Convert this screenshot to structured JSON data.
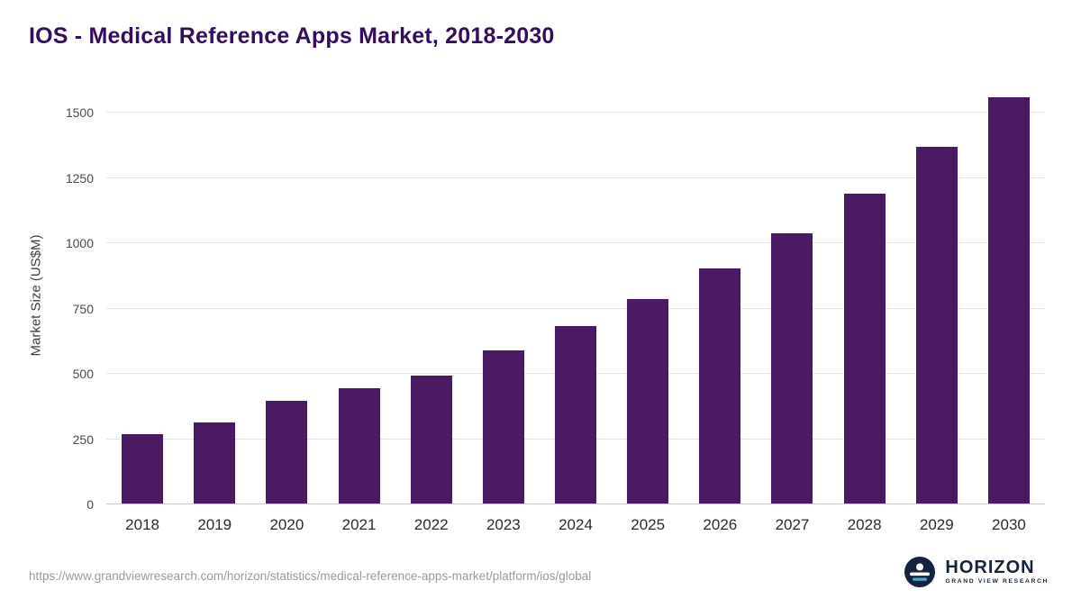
{
  "header": {
    "title": "IOS - Medical Reference Apps Market, 2018-2030"
  },
  "footer": {
    "source_url": "https://www.grandviewresearch.com/horizon/statistics/medical-reference-apps-market/platform/ios/global",
    "brand": {
      "name": "HORIZON",
      "subtitle": "GRAND VIEW RESEARCH"
    }
  },
  "colors": {
    "bar": "#4a1a63",
    "title": "#340d5e",
    "grid": "#e4e4e4",
    "axis": "#c9c9c9",
    "source_text": "#9a9a9a",
    "brand_navy": "#15233f"
  },
  "chart_data": {
    "type": "bar",
    "title": "IOS - Medical Reference Apps Market, 2018-2030",
    "xlabel": "",
    "ylabel": "Market Size (US$M)",
    "categories": [
      "2018",
      "2019",
      "2020",
      "2021",
      "2022",
      "2023",
      "2024",
      "2025",
      "2026",
      "2027",
      "2028",
      "2029",
      "2030"
    ],
    "values": [
      270,
      315,
      395,
      445,
      492,
      590,
      682,
      787,
      905,
      1037,
      1190,
      1368,
      1560
    ],
    "ylim": [
      0,
      1600
    ],
    "yticks": [
      0,
      250,
      500,
      750,
      1000,
      1250,
      1500
    ],
    "grid": true,
    "legend": false
  }
}
